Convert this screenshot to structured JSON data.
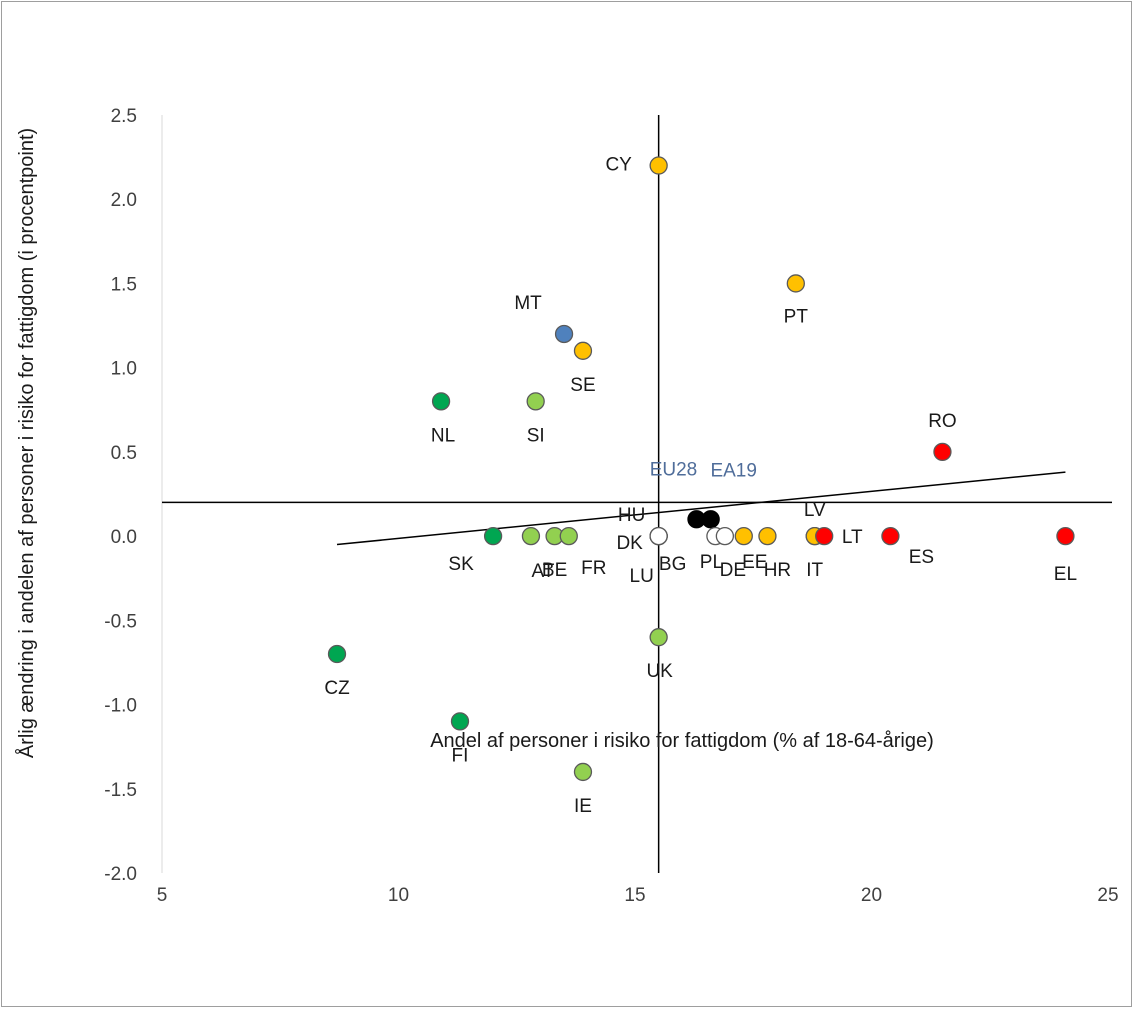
{
  "chart_data": {
    "type": "scatter",
    "xlabel": "Andel af personer i risiko for fattigdom (% af 18-64-årige)",
    "ylabel": "Årlig ændring i andelen af personer i risiko for fattigdom (i procentpoint)",
    "xlim": [
      5,
      25
    ],
    "ylim": [
      -2.0,
      2.5
    ],
    "x_ticks": [
      5,
      10,
      15,
      20,
      25
    ],
    "y_ticks": [
      -2.0,
      -1.5,
      -1.0,
      -0.5,
      0.0,
      0.5,
      1.0,
      1.5,
      2.0,
      2.5
    ],
    "grid": false,
    "reference_lines": {
      "x": 15.5,
      "y": 0.2
    },
    "trendline": {
      "x": [
        8.7,
        24.1
      ],
      "y": [
        -0.05,
        0.38
      ]
    },
    "colors": {
      "dark_green": "#00a651",
      "light_green": "#92d050",
      "blue": "#4f81bd",
      "orange": "#ffc000",
      "red": "#ff0000",
      "white": "#ffffff",
      "black": "#000000",
      "aggregate_label": "#4f6d9a"
    },
    "points": [
      {
        "label": "CY",
        "x": 15.5,
        "y": 2.2,
        "color": "orange"
      },
      {
        "label": "PT",
        "x": 18.4,
        "y": 1.5,
        "color": "orange"
      },
      {
        "label": "MT",
        "x": 13.5,
        "y": 1.2,
        "color": "blue"
      },
      {
        "label": "SE",
        "x": 13.9,
        "y": 1.1,
        "color": "orange"
      },
      {
        "label": "NL",
        "x": 10.9,
        "y": 0.8,
        "color": "dark_green"
      },
      {
        "label": "SI",
        "x": 12.9,
        "y": 0.8,
        "color": "light_green"
      },
      {
        "label": "RO",
        "x": 21.5,
        "y": 0.5,
        "color": "red"
      },
      {
        "label": "EU28",
        "x": 16.3,
        "y": 0.1,
        "color": "black"
      },
      {
        "label": "EA19",
        "x": 16.6,
        "y": 0.1,
        "color": "black"
      },
      {
        "label": "SK",
        "x": 12.0,
        "y": 0.0,
        "color": "dark_green"
      },
      {
        "label": "AT",
        "x": 12.8,
        "y": 0.0,
        "color": "light_green"
      },
      {
        "label": "BE",
        "x": 13.3,
        "y": 0.0,
        "color": "light_green"
      },
      {
        "label": "FR",
        "x": 13.6,
        "y": 0.0,
        "color": "light_green"
      },
      {
        "label": "HU",
        "x": 15.5,
        "y": 0.0,
        "color": "white"
      },
      {
        "label": "DK",
        "x": 15.5,
        "y": 0.0,
        "color": "white"
      },
      {
        "label": "LU",
        "x": 15.5,
        "y": 0.0,
        "color": "white"
      },
      {
        "label": "BG",
        "x": 15.5,
        "y": 0.0,
        "color": "white"
      },
      {
        "label": "PL",
        "x": 16.7,
        "y": 0.0,
        "color": "white"
      },
      {
        "label": "DE",
        "x": 16.9,
        "y": 0.0,
        "color": "white"
      },
      {
        "label": "EE",
        "x": 17.3,
        "y": 0.0,
        "color": "orange"
      },
      {
        "label": "HR",
        "x": 17.8,
        "y": 0.0,
        "color": "orange"
      },
      {
        "label": "LV",
        "x": 18.8,
        "y": 0.0,
        "color": "orange"
      },
      {
        "label": "IT",
        "x": 18.8,
        "y": 0.0,
        "color": "orange"
      },
      {
        "label": "LT",
        "x": 19.0,
        "y": 0.0,
        "color": "red"
      },
      {
        "label": "ES",
        "x": 20.4,
        "y": 0.0,
        "color": "red"
      },
      {
        "label": "EL",
        "x": 24.1,
        "y": 0.0,
        "color": "red"
      },
      {
        "label": "UK",
        "x": 15.5,
        "y": -0.6,
        "color": "light_green"
      },
      {
        "label": "CZ",
        "x": 8.7,
        "y": -0.7,
        "color": "dark_green"
      },
      {
        "label": "FI",
        "x": 11.3,
        "y": -1.1,
        "color": "dark_green"
      },
      {
        "label": "IE",
        "x": 13.9,
        "y": -1.4,
        "color": "light_green"
      }
    ]
  }
}
